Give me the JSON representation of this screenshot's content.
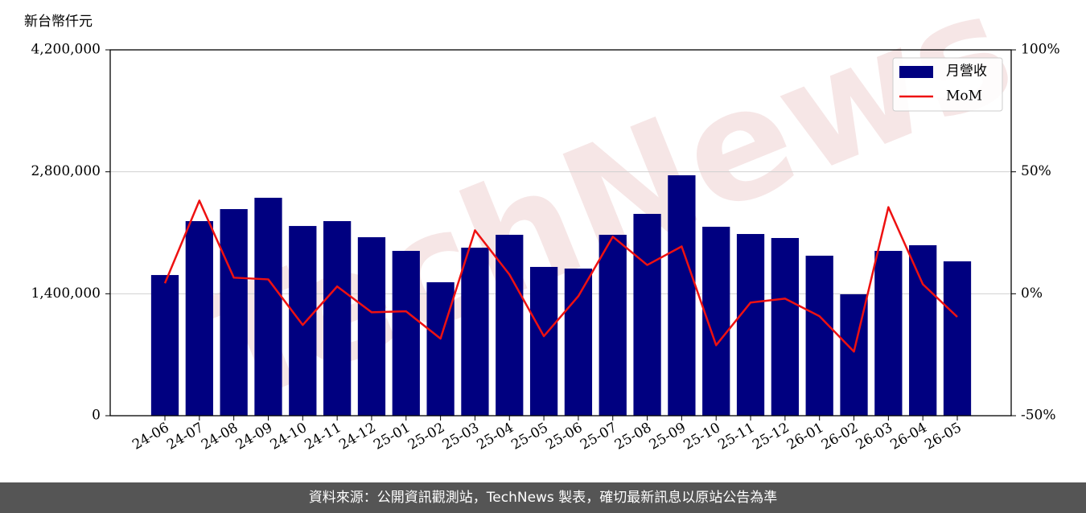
{
  "chart_data": {
    "type": "bar_line",
    "y_label": "新台幣仟元",
    "watermark": "TechNews",
    "footer": "資料來源：公開資訊觀測站，TechNews 製表，確切最新訊息以原站公告為準",
    "categories": [
      "24-06",
      "24-07",
      "24-08",
      "24-09",
      "24-10",
      "24-11",
      "24-12",
      "25-01",
      "25-02",
      "25-03",
      "25-04",
      "25-05",
      "25-06",
      "25-07",
      "25-08",
      "25-09",
      "25-10",
      "25-11",
      "25-12",
      "26-01",
      "26-02",
      "26-03",
      "26-04",
      "26-05"
    ],
    "series": [
      {
        "name": "月營收",
        "type": "bar",
        "color": "#000080",
        "values": [
          1615000,
          2234000,
          2372000,
          2502000,
          2178000,
          2234000,
          2049000,
          1892000,
          1532000,
          1929000,
          2077000,
          1708000,
          1689000,
          2077000,
          2317000,
          2760000,
          2169000,
          2086000,
          2040000,
          1837000,
          1394000,
          1892000,
          1957000,
          1772000
        ]
      },
      {
        "name": "MoM",
        "type": "line",
        "axis": "y2",
        "color": "#ee1111",
        "values": [
          4.3,
          38.2,
          6.6,
          5.9,
          -12.8,
          3.0,
          -7.6,
          -7.2,
          -18.4,
          26.0,
          7.9,
          -17.4,
          -1.0,
          23.4,
          11.8,
          19.4,
          -21.1,
          -3.6,
          -2.0,
          -9.2,
          -23.7,
          35.5,
          3.9,
          -9.5
        ]
      }
    ],
    "ylim": [
      0,
      4200000
    ],
    "yticks": [
      0,
      {
        "value": 1400000,
        "label": "1,400,000"
      },
      {
        "value": 2800000,
        "label": "2,800,000"
      },
      {
        "value": 4200000,
        "label": "4,200,000"
      }
    ],
    "y2lim": [
      -50,
      100
    ],
    "y2ticks": [
      {
        "value": -50,
        "label": "-50%"
      },
      {
        "value": 0,
        "label": "0%"
      },
      {
        "value": 50,
        "label": "50%"
      },
      {
        "value": 100,
        "label": "100%"
      }
    ],
    "grid": true,
    "legend": "upper-right"
  }
}
